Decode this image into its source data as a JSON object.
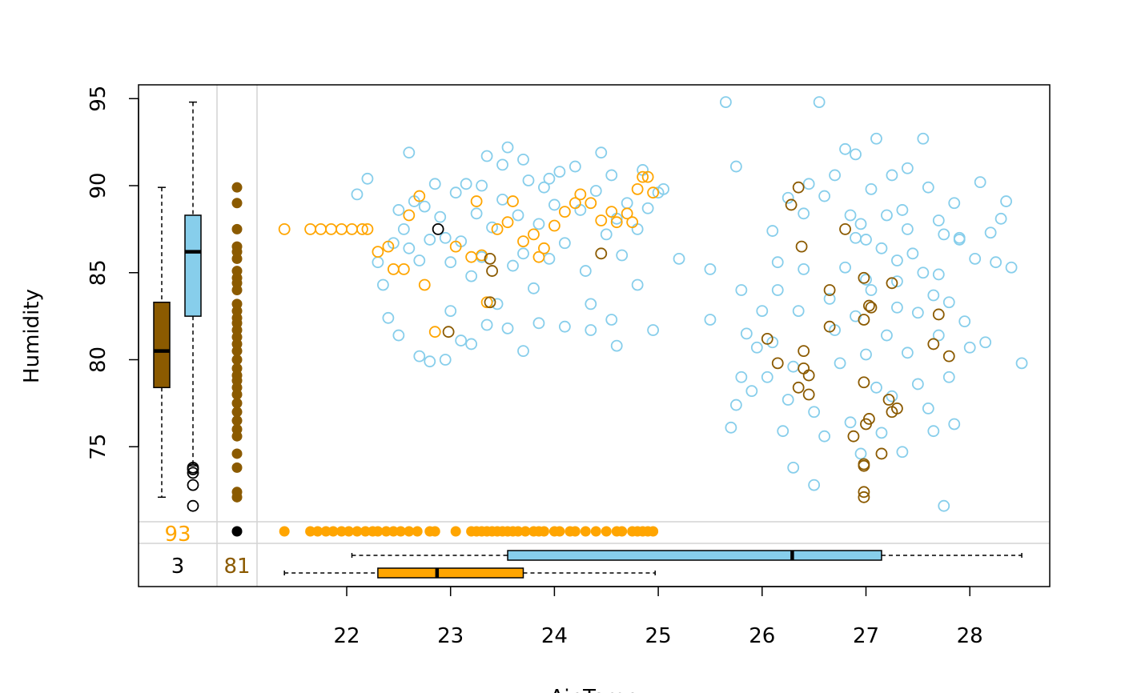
{
  "chart_data": {
    "type": "scatter",
    "title": "",
    "xlabel": "Air.Temp",
    "ylabel": "Humidity",
    "xlim": [
      21.45,
      28.55
    ],
    "ylim": [
      71.5,
      94.8
    ],
    "x_ticks": [
      "22",
      "23",
      "24",
      "25",
      "26",
      "27",
      "28"
    ],
    "y_ticks": [
      "75",
      "80",
      "85",
      "90",
      "95"
    ],
    "grid": false,
    "colors": {
      "sky": "#87ceeb",
      "orange": "#ffa500",
      "brown": "#8b5a00",
      "black": "#000000",
      "divider": "#d3d3d3"
    },
    "missing_counts": {
      "humidity_missing_label": "93",
      "airtemp_missing_label": "81",
      "both_missing_label": "3"
    },
    "boxplots": {
      "humidity_complete": {
        "min": 72.1,
        "q1": 78.4,
        "median": 80.5,
        "q3": 83.3,
        "max": 89.9,
        "outliers": []
      },
      "humidity_all": {
        "min": 73.9,
        "q1": 82.5,
        "median": 86.2,
        "q3": 88.3,
        "max": 94.8,
        "outliers": [
          73.8,
          73.7,
          73.5,
          72.8,
          71.6
        ]
      },
      "airtemp_all": {
        "min": 22.05,
        "q1": 23.55,
        "median": 26.29,
        "q3": 27.15,
        "max": 28.5,
        "outliers": []
      },
      "airtemp_complete": {
        "min": 21.4,
        "q1": 22.3,
        "median": 22.87,
        "q3": 23.7,
        "max": 24.97,
        "outliers": []
      }
    },
    "series": [
      {
        "color": "sky",
        "points": [
          [
            22.1,
            89.5
          ],
          [
            22.2,
            90.4
          ],
          [
            22.3,
            85.6
          ],
          [
            22.35,
            84.3
          ],
          [
            22.45,
            86.7
          ],
          [
            22.5,
            88.6
          ],
          [
            22.55,
            87.5
          ],
          [
            22.6,
            86.4
          ],
          [
            22.65,
            89.1
          ],
          [
            22.7,
            85.7
          ],
          [
            22.75,
            88.8
          ],
          [
            22.8,
            86.9
          ],
          [
            22.85,
            90.1
          ],
          [
            22.9,
            88.2
          ],
          [
            22.95,
            87.0
          ],
          [
            23.0,
            85.6
          ],
          [
            23.05,
            89.6
          ],
          [
            23.1,
            86.8
          ],
          [
            23.15,
            90.1
          ],
          [
            23.2,
            84.8
          ],
          [
            23.25,
            88.4
          ],
          [
            23.3,
            85.9
          ],
          [
            23.35,
            91.7
          ],
          [
            23.4,
            87.6
          ],
          [
            23.45,
            83.2
          ],
          [
            23.5,
            89.2
          ],
          [
            23.55,
            92.2
          ],
          [
            23.6,
            85.4
          ],
          [
            23.65,
            88.3
          ],
          [
            23.7,
            86.1
          ],
          [
            23.75,
            90.3
          ],
          [
            23.8,
            84.1
          ],
          [
            23.85,
            87.8
          ],
          [
            23.9,
            89.9
          ],
          [
            23.95,
            85.8
          ],
          [
            24.0,
            88.9
          ],
          [
            24.05,
            90.8
          ],
          [
            24.1,
            86.7
          ],
          [
            24.2,
            91.1
          ],
          [
            24.25,
            88.6
          ],
          [
            24.3,
            85.1
          ],
          [
            24.35,
            83.2
          ],
          [
            24.4,
            89.7
          ],
          [
            24.45,
            91.9
          ],
          [
            24.5,
            87.2
          ],
          [
            24.55,
            90.6
          ],
          [
            24.6,
            88.1
          ],
          [
            24.65,
            86.0
          ],
          [
            24.7,
            89.0
          ],
          [
            24.8,
            87.5
          ],
          [
            24.85,
            90.9
          ],
          [
            24.9,
            88.7
          ],
          [
            25.0,
            89.6
          ],
          [
            25.2,
            85.8
          ],
          [
            22.4,
            82.4
          ],
          [
            22.5,
            81.4
          ],
          [
            22.7,
            80.2
          ],
          [
            22.8,
            79.9
          ],
          [
            22.95,
            80.0
          ],
          [
            23.0,
            82.8
          ],
          [
            23.1,
            81.1
          ],
          [
            23.2,
            80.9
          ],
          [
            23.35,
            82.0
          ],
          [
            23.55,
            81.8
          ],
          [
            23.7,
            80.5
          ],
          [
            23.85,
            82.1
          ],
          [
            24.1,
            81.9
          ],
          [
            24.35,
            81.7
          ],
          [
            24.55,
            82.3
          ],
          [
            24.6,
            80.8
          ],
          [
            24.8,
            84.3
          ],
          [
            24.95,
            81.7
          ],
          [
            22.6,
            91.9
          ],
          [
            23.3,
            90.0
          ],
          [
            23.5,
            91.2
          ],
          [
            23.7,
            91.5
          ],
          [
            23.95,
            90.4
          ],
          [
            25.05,
            89.8
          ],
          [
            25.5,
            82.3
          ],
          [
            25.5,
            85.2
          ],
          [
            25.65,
            94.8
          ],
          [
            25.7,
            76.1
          ],
          [
            25.75,
            77.4
          ],
          [
            25.75,
            91.1
          ],
          [
            25.8,
            79.0
          ],
          [
            25.8,
            84.0
          ],
          [
            25.85,
            81.5
          ],
          [
            25.9,
            78.2
          ],
          [
            25.95,
            80.7
          ],
          [
            26.0,
            82.8
          ],
          [
            26.05,
            79.0
          ],
          [
            26.1,
            81.0
          ],
          [
            26.15,
            84.0
          ],
          [
            26.15,
            85.6
          ],
          [
            26.2,
            75.9
          ],
          [
            26.25,
            77.7
          ],
          [
            26.25,
            89.3
          ],
          [
            26.3,
            73.8
          ],
          [
            26.3,
            79.6
          ],
          [
            26.35,
            82.8
          ],
          [
            26.4,
            85.2
          ],
          [
            26.4,
            88.4
          ],
          [
            26.45,
            90.1
          ],
          [
            26.5,
            72.8
          ],
          [
            26.5,
            77.0
          ],
          [
            26.55,
            94.8
          ],
          [
            26.6,
            89.4
          ],
          [
            26.6,
            75.6
          ],
          [
            26.65,
            83.5
          ],
          [
            26.7,
            90.6
          ],
          [
            26.7,
            81.7
          ],
          [
            26.75,
            79.8
          ],
          [
            26.8,
            92.1
          ],
          [
            26.8,
            85.3
          ],
          [
            26.85,
            88.3
          ],
          [
            26.85,
            76.4
          ],
          [
            26.9,
            91.8
          ],
          [
            26.9,
            82.5
          ],
          [
            26.95,
            74.6
          ],
          [
            26.95,
            87.8
          ],
          [
            27.0,
            80.3
          ],
          [
            27.0,
            86.9
          ],
          [
            27.05,
            89.8
          ],
          [
            27.05,
            84.0
          ],
          [
            27.1,
            92.7
          ],
          [
            27.1,
            78.4
          ],
          [
            27.15,
            86.4
          ],
          [
            27.15,
            75.8
          ],
          [
            27.2,
            88.3
          ],
          [
            27.2,
            81.4
          ],
          [
            27.25,
            90.6
          ],
          [
            27.25,
            77.9
          ],
          [
            27.3,
            85.7
          ],
          [
            27.3,
            83.0
          ],
          [
            27.35,
            74.7
          ],
          [
            27.35,
            88.6
          ],
          [
            27.4,
            91.0
          ],
          [
            27.4,
            80.4
          ],
          [
            27.45,
            86.1
          ],
          [
            27.5,
            82.7
          ],
          [
            27.5,
            78.6
          ],
          [
            27.55,
            92.7
          ],
          [
            27.55,
            85.0
          ],
          [
            27.6,
            77.2
          ],
          [
            27.6,
            89.9
          ],
          [
            27.65,
            83.7
          ],
          [
            27.65,
            75.9
          ],
          [
            27.7,
            88.0
          ],
          [
            27.7,
            81.4
          ],
          [
            27.75,
            71.6
          ],
          [
            27.75,
            87.2
          ],
          [
            27.8,
            83.3
          ],
          [
            27.8,
            79.0
          ],
          [
            27.85,
            76.3
          ],
          [
            27.85,
            89.0
          ],
          [
            27.9,
            86.9
          ],
          [
            27.95,
            82.2
          ],
          [
            28.0,
            80.7
          ],
          [
            28.05,
            85.8
          ],
          [
            28.1,
            90.2
          ],
          [
            28.15,
            81.0
          ],
          [
            28.2,
            87.3
          ],
          [
            28.25,
            85.6
          ],
          [
            28.3,
            88.1
          ],
          [
            28.35,
            89.1
          ],
          [
            28.4,
            85.3
          ],
          [
            28.5,
            79.8
          ],
          [
            26.1,
            87.4
          ],
          [
            26.9,
            87.0
          ],
          [
            27.4,
            87.5
          ],
          [
            27.9,
            87.0
          ],
          [
            27.0,
            84.6
          ],
          [
            27.3,
            84.5
          ],
          [
            27.7,
            84.9
          ]
        ]
      },
      {
        "color": "orange",
        "points": [
          [
            21.4,
            87.5
          ],
          [
            21.65,
            87.5
          ],
          [
            21.75,
            87.5
          ],
          [
            21.85,
            87.5
          ],
          [
            21.95,
            87.5
          ],
          [
            22.05,
            87.5
          ],
          [
            22.15,
            87.5
          ],
          [
            22.2,
            87.5
          ],
          [
            22.3,
            86.2
          ],
          [
            22.4,
            86.5
          ],
          [
            22.45,
            85.2
          ],
          [
            22.55,
            85.2
          ],
          [
            22.6,
            88.3
          ],
          [
            22.7,
            89.4
          ],
          [
            22.75,
            84.3
          ],
          [
            22.85,
            81.6
          ],
          [
            23.05,
            86.5
          ],
          [
            23.2,
            85.9
          ],
          [
            23.25,
            89.1
          ],
          [
            23.3,
            86.0
          ],
          [
            23.35,
            83.3
          ],
          [
            23.45,
            87.5
          ],
          [
            23.55,
            87.9
          ],
          [
            23.6,
            89.1
          ],
          [
            23.7,
            86.8
          ],
          [
            23.8,
            87.2
          ],
          [
            23.9,
            86.4
          ],
          [
            23.85,
            85.9
          ],
          [
            24.0,
            87.7
          ],
          [
            24.1,
            88.5
          ],
          [
            24.2,
            89.0
          ],
          [
            24.25,
            89.5
          ],
          [
            24.35,
            89.0
          ],
          [
            24.45,
            88.0
          ],
          [
            24.55,
            88.5
          ],
          [
            24.6,
            87.9
          ],
          [
            24.7,
            88.4
          ],
          [
            24.75,
            87.9
          ],
          [
            24.8,
            89.8
          ],
          [
            24.9,
            90.5
          ],
          [
            24.95,
            89.6
          ],
          [
            24.85,
            90.5
          ]
        ]
      },
      {
        "color": "brown",
        "points": [
          [
            22.98,
            81.6
          ],
          [
            23.4,
            85.1
          ],
          [
            23.38,
            85.8
          ],
          [
            23.38,
            83.3
          ],
          [
            24.45,
            86.1
          ],
          [
            26.05,
            81.2
          ],
          [
            26.15,
            79.8
          ],
          [
            26.28,
            88.9
          ],
          [
            26.35,
            78.4
          ],
          [
            26.35,
            89.9
          ],
          [
            26.38,
            86.5
          ],
          [
            26.4,
            80.5
          ],
          [
            26.4,
            79.5
          ],
          [
            26.45,
            78.0
          ],
          [
            26.45,
            79.1
          ],
          [
            26.65,
            84.0
          ],
          [
            26.65,
            81.9
          ],
          [
            26.8,
            87.5
          ],
          [
            26.88,
            75.6
          ],
          [
            26.98,
            72.4
          ],
          [
            26.98,
            72.1
          ],
          [
            26.98,
            74.0
          ],
          [
            26.98,
            73.9
          ],
          [
            26.98,
            78.7
          ],
          [
            26.98,
            82.3
          ],
          [
            26.98,
            84.7
          ],
          [
            27.0,
            76.3
          ],
          [
            27.03,
            76.6
          ],
          [
            27.03,
            83.1
          ],
          [
            27.05,
            83.0
          ],
          [
            27.15,
            74.6
          ],
          [
            27.22,
            77.7
          ],
          [
            27.25,
            77.0
          ],
          [
            27.25,
            84.4
          ],
          [
            27.3,
            77.2
          ],
          [
            27.65,
            80.9
          ],
          [
            27.7,
            82.6
          ],
          [
            27.8,
            80.2
          ]
        ]
      },
      {
        "color": "black",
        "points": [
          [
            22.88,
            87.5
          ]
        ]
      }
    ],
    "missing_humidity_x": [
      21.4,
      21.65,
      21.72,
      21.8,
      21.87,
      21.95,
      22.02,
      22.1,
      22.18,
      22.25,
      22.3,
      22.38,
      22.45,
      22.52,
      22.6,
      22.68,
      22.8,
      22.85,
      23.05,
      23.2,
      23.25,
      23.3,
      23.35,
      23.4,
      23.45,
      23.5,
      23.55,
      23.6,
      23.65,
      23.72,
      23.8,
      23.85,
      23.9,
      24.0,
      24.05,
      24.15,
      24.2,
      24.3,
      24.4,
      24.5,
      24.6,
      24.65,
      24.75,
      24.8,
      24.85,
      24.9,
      24.95
    ],
    "missing_airtemp_y": [
      72.1,
      72.4,
      73.8,
      74.6,
      75.6,
      76.0,
      76.5,
      77.0,
      77.5,
      78.0,
      78.4,
      78.8,
      79.1,
      79.5,
      80.0,
      80.5,
      80.9,
      81.3,
      81.7,
      82.1,
      82.4,
      82.8,
      83.2,
      84.0,
      84.4,
      84.7,
      85.1,
      85.8,
      86.2,
      86.5,
      87.5,
      89.0,
      89.9
    ]
  }
}
